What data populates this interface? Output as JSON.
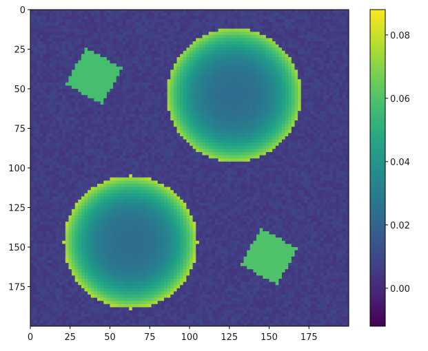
{
  "chart_data": {
    "type": "heatmap",
    "title": "",
    "xlabel": "",
    "ylabel": "",
    "x_range": [
      0,
      200
    ],
    "y_range": [
      0,
      200
    ],
    "y_inverted": true,
    "x_ticks": [
      0,
      25,
      50,
      75,
      100,
      125,
      150,
      175
    ],
    "y_ticks": [
      0,
      25,
      50,
      75,
      100,
      125,
      150,
      175
    ],
    "x_tick_labels": [
      "0",
      "25",
      "50",
      "75",
      "100",
      "125",
      "150",
      "175"
    ],
    "y_tick_labels": [
      "0",
      "25",
      "50",
      "75",
      "100",
      "125",
      "150",
      "175"
    ],
    "colormap": "viridis",
    "value_range": [
      -0.012,
      0.088
    ],
    "background_value": 0.006,
    "colorbar": {
      "position": "right",
      "ticks": [
        0.0,
        0.02,
        0.04,
        0.06,
        0.08
      ],
      "tick_labels": [
        "0.00",
        "0.02",
        "0.04",
        "0.06",
        "0.08"
      ]
    },
    "features": [
      {
        "shape": "ring",
        "center": [
          128,
          54
        ],
        "outer_radius": 42,
        "edge_value": 0.074,
        "inner_value": 0.024
      },
      {
        "shape": "ring",
        "center": [
          63,
          147
        ],
        "outer_radius": 42,
        "edge_value": 0.078,
        "inner_value": 0.024
      },
      {
        "shape": "square",
        "center": [
          40,
          42
        ],
        "half_size": 13,
        "rotation_deg": 28,
        "value": 0.058
      },
      {
        "shape": "square",
        "center": [
          150,
          156
        ],
        "half_size": 13,
        "rotation_deg": 28,
        "value": 0.06
      }
    ],
    "grid": false
  }
}
